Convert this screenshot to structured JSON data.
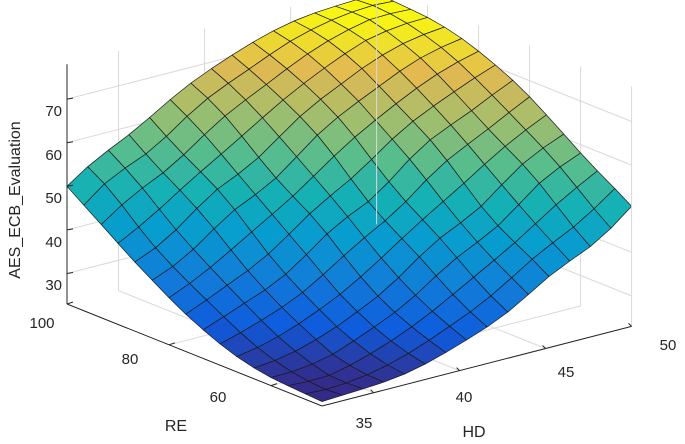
{
  "chart_data": {
    "type": "surface",
    "title": "",
    "xlabel": "HD",
    "ylabel": "RE",
    "zlabel": "AES_ECB_Evaluation",
    "x_ticks": [
      "35",
      "40",
      "45",
      "50"
    ],
    "y_ticks": [
      "60",
      "80",
      "100"
    ],
    "z_ticks": [
      "30",
      "40",
      "50",
      "60",
      "70"
    ],
    "xlim": [
      32,
      50
    ],
    "ylim": [
      50,
      100
    ],
    "zlim": [
      23,
      78
    ],
    "grid": true,
    "colormap": "parula",
    "x_grid": [
      32,
      33.2,
      34.4,
      35.6,
      36.8,
      38,
      39.2,
      40.4,
      41.6,
      42.8,
      44,
      45.2,
      46.4,
      47.6,
      48.8,
      50
    ],
    "y_grid": [
      50,
      53.3,
      56.7,
      60,
      63.3,
      66.7,
      70,
      73.3,
      76.7,
      80,
      83.3,
      86.7,
      90,
      93.3,
      96.7,
      100
    ],
    "z_range_shown": {
      "min": 24,
      "max": 76,
      "plateau": 50
    }
  }
}
